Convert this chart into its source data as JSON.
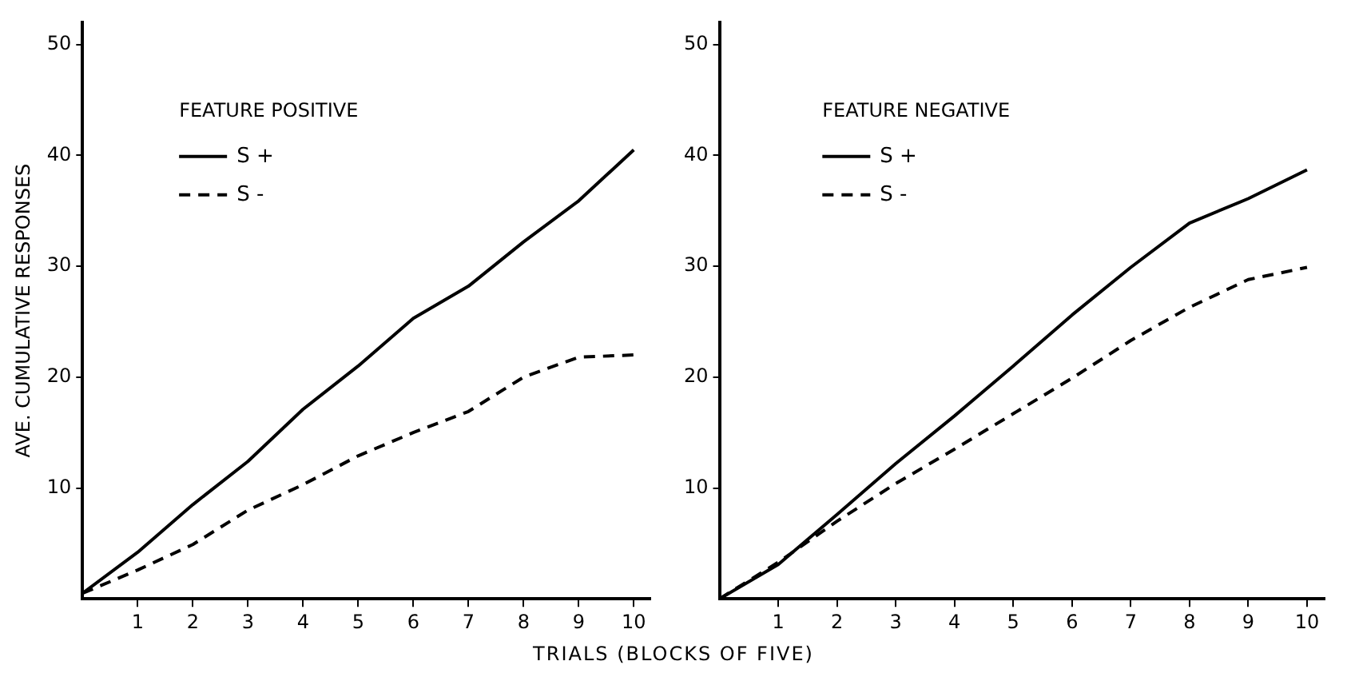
{
  "chart_data": [
    {
      "type": "line",
      "title": "FEATURE POSITIVE",
      "xlabel": "TRIALS (BLOCKS OF FIVE)",
      "ylabel": "AVE. CUMULATIVE RESPONSES",
      "x": [
        0,
        1,
        2,
        3,
        4,
        5,
        6,
        7,
        8,
        9,
        10
      ],
      "series": [
        {
          "name": "S +",
          "color": "#000000",
          "line_style": "solid",
          "values": [
            0.5,
            4.2,
            8.5,
            12.4,
            17.1,
            21,
            25.3,
            28.2,
            32.2,
            35.9,
            40.5
          ]
        },
        {
          "name": "S -",
          "color": "#000000",
          "line_style": "dashed",
          "values": [
            0.5,
            2.6,
            4.9,
            8,
            10.3,
            12.9,
            15,
            16.9,
            20,
            21.8,
            22
          ]
        }
      ],
      "xlim": [
        0,
        10.3
      ],
      "xticks": [
        1,
        2,
        3,
        4,
        5,
        6,
        7,
        8,
        9,
        10
      ],
      "ylim": [
        0,
        52
      ],
      "yticks": [
        10,
        20,
        30,
        40,
        50
      ],
      "grid": false,
      "legend": "top left"
    },
    {
      "type": "line",
      "title": "FEATURE NEGATIVE",
      "x": [
        0,
        1,
        2,
        3,
        4,
        5,
        6,
        7,
        8,
        9,
        10
      ],
      "series": [
        {
          "name": "S +",
          "color": "#000000",
          "line_style": "solid",
          "values": [
            0,
            3.1,
            7.6,
            12.2,
            16.5,
            21,
            25.6,
            29.9,
            33.9,
            36.1,
            38.7
          ]
        },
        {
          "name": "S -",
          "color": "#000000",
          "line_style": "dashed",
          "values": [
            0,
            3.3,
            7,
            10.4,
            13.5,
            16.7,
            19.9,
            23.3,
            26.3,
            28.8,
            29.9
          ]
        }
      ],
      "xlim": [
        0,
        10.3
      ],
      "xticks": [
        1,
        2,
        3,
        4,
        5,
        6,
        7,
        8,
        9,
        10
      ],
      "ylim": [
        0,
        52
      ],
      "yticks": [
        10,
        20,
        30,
        40,
        50
      ],
      "grid": false,
      "legend": "top left"
    }
  ]
}
